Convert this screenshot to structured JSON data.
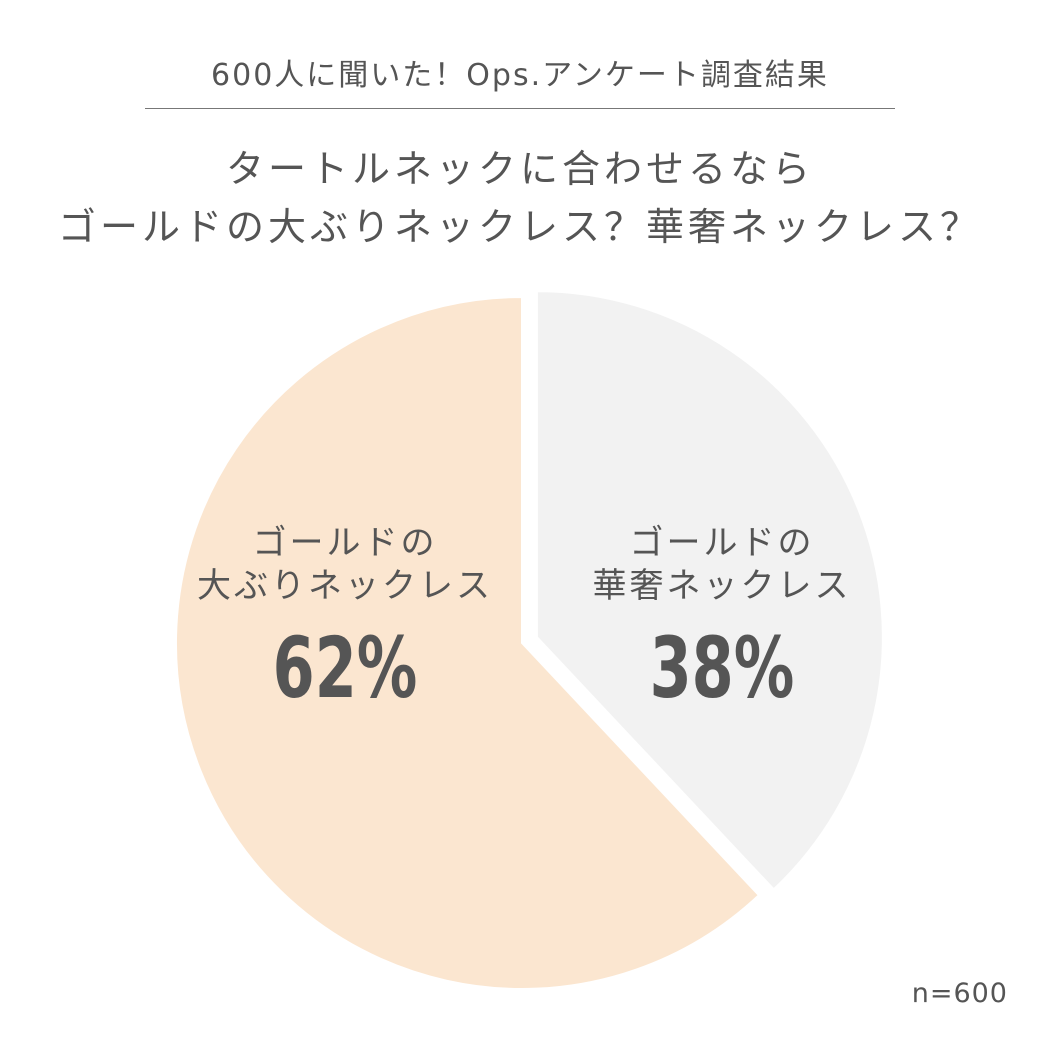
{
  "header": {
    "title": "600人に聞いた！Ops.アンケート調査結果"
  },
  "question": {
    "line1": "タートルネックに合わせるなら",
    "line2": "ゴールドの大ぶりネックレス？華奢ネックレス？"
  },
  "sample_size": "n=600",
  "colors": {
    "slice_large": "#fbe6d0",
    "slice_small": "#f2f2f2",
    "text": "#555555"
  },
  "chart_data": {
    "type": "pie",
    "title": "",
    "slices": [
      {
        "label": "ゴールドの華奢ネックレス",
        "label_lines": [
          "ゴールドの",
          "華奢ネックレス"
        ],
        "value": 38,
        "value_label": "38%",
        "color": "#f2f2f2"
      },
      {
        "label": "ゴールドの大ぶりネックレス",
        "label_lines": [
          "ゴールドの",
          "大ぶりネックレス"
        ],
        "value": 62,
        "value_label": "62%",
        "color": "#fbe6d0"
      }
    ],
    "start_angle": "12 o'clock",
    "direction": "clockwise",
    "exploded_slice": "ゴールドの華奢ネックレス",
    "legend": "none (labels inside slices)"
  }
}
